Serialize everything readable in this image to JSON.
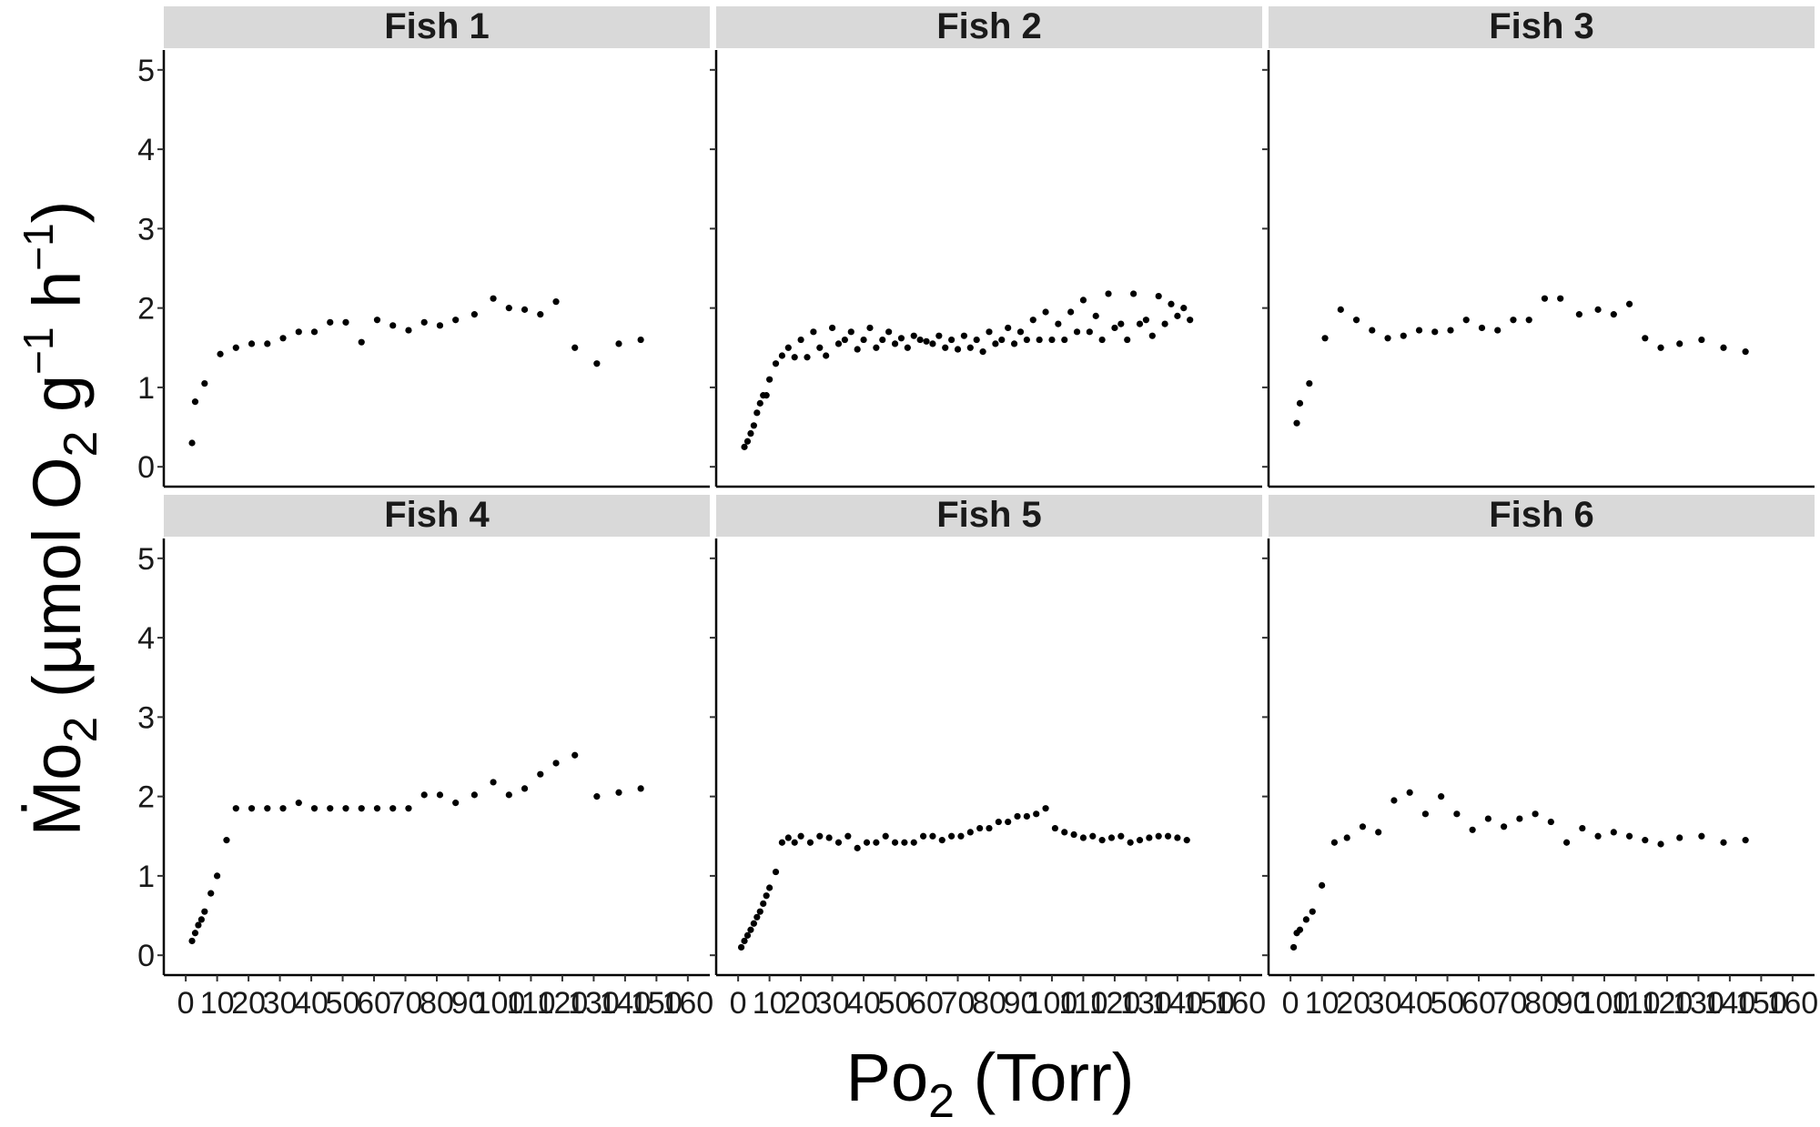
{
  "chart_data": {
    "type": "scatter",
    "facet_layout": "2 rows x 3 columns",
    "shared_axes": true,
    "grid": false,
    "legend": "none",
    "point_color": "#000000",
    "strip_color": "#d9d9d9",
    "xlabel": "Po₂ (Torr)",
    "ylabel": "Ṁo₂ (µmol O₂ g⁻¹ h⁻¹)",
    "xlim": [
      -7,
      167
    ],
    "ylim": [
      -0.25,
      5.25
    ],
    "x_ticks": [
      "0",
      "10",
      "20",
      "30",
      "40",
      "50",
      "60",
      "70",
      "80",
      "90",
      "100",
      "110",
      "120",
      "130",
      "140",
      "150",
      "160"
    ],
    "y_ticks": [
      "0",
      "1",
      "2",
      "3",
      "4",
      "5"
    ],
    "panels": [
      {
        "title": "Fish 1",
        "x": [
          2,
          3,
          6,
          11,
          16,
          21,
          26,
          31,
          36,
          41,
          46,
          51,
          56,
          61,
          66,
          71,
          76,
          81,
          86,
          92,
          98,
          103,
          108,
          113,
          118,
          124,
          131,
          138,
          145
        ],
        "y": [
          0.3,
          0.82,
          1.05,
          1.42,
          1.5,
          1.55,
          1.55,
          1.62,
          1.7,
          1.7,
          1.82,
          1.82,
          1.57,
          1.85,
          1.78,
          1.72,
          1.82,
          1.78,
          1.85,
          1.92,
          2.12,
          2.0,
          1.98,
          1.92,
          2.08,
          1.5,
          1.3,
          1.55,
          1.6
        ]
      },
      {
        "title": "Fish 2",
        "x": [
          2,
          3,
          4,
          5,
          6,
          7,
          8,
          9,
          10,
          12,
          14,
          16,
          18,
          20,
          22,
          24,
          26,
          28,
          30,
          32,
          34,
          36,
          38,
          40,
          42,
          44,
          46,
          48,
          50,
          52,
          54,
          56,
          58,
          60,
          62,
          64,
          66,
          68,
          70,
          72,
          74,
          76,
          78,
          80,
          82,
          84,
          86,
          88,
          90,
          92,
          94,
          96,
          98,
          100,
          102,
          104,
          106,
          108,
          110,
          112,
          114,
          116,
          118,
          120,
          122,
          124,
          126,
          128,
          130,
          132,
          134,
          136,
          138,
          140,
          142,
          144
        ],
        "y": [
          0.25,
          0.32,
          0.42,
          0.52,
          0.68,
          0.8,
          0.9,
          0.9,
          1.1,
          1.3,
          1.4,
          1.5,
          1.38,
          1.6,
          1.38,
          1.7,
          1.5,
          1.4,
          1.75,
          1.55,
          1.6,
          1.7,
          1.48,
          1.6,
          1.75,
          1.5,
          1.6,
          1.7,
          1.55,
          1.62,
          1.5,
          1.65,
          1.6,
          1.58,
          1.55,
          1.65,
          1.5,
          1.6,
          1.48,
          1.65,
          1.5,
          1.6,
          1.45,
          1.7,
          1.55,
          1.6,
          1.75,
          1.55,
          1.7,
          1.6,
          1.85,
          1.6,
          1.95,
          1.6,
          1.8,
          1.6,
          1.95,
          1.7,
          2.1,
          1.7,
          1.9,
          1.6,
          2.18,
          1.75,
          1.8,
          1.6,
          2.18,
          1.8,
          1.85,
          1.65,
          2.15,
          1.8,
          2.05,
          1.9,
          2.0,
          1.85
        ]
      },
      {
        "title": "Fish 3",
        "x": [
          2,
          3,
          6,
          11,
          16,
          21,
          26,
          31,
          36,
          41,
          46,
          51,
          56,
          61,
          66,
          71,
          76,
          81,
          86,
          92,
          98,
          103,
          108,
          113,
          118,
          124,
          131,
          138,
          145
        ],
        "y": [
          0.55,
          0.8,
          1.05,
          1.62,
          1.98,
          1.85,
          1.72,
          1.62,
          1.65,
          1.72,
          1.7,
          1.72,
          1.85,
          1.75,
          1.72,
          1.85,
          1.85,
          2.12,
          2.12,
          1.92,
          1.98,
          1.92,
          2.05,
          1.62,
          1.5,
          1.55,
          1.6,
          1.5,
          1.45
        ]
      },
      {
        "title": "Fish 4",
        "x": [
          2,
          3,
          4,
          5,
          6,
          8,
          10,
          13,
          16,
          21,
          26,
          31,
          36,
          41,
          46,
          51,
          56,
          61,
          66,
          71,
          76,
          81,
          86,
          92,
          98,
          103,
          108,
          113,
          118,
          124,
          131,
          138,
          145
        ],
        "y": [
          0.18,
          0.28,
          0.38,
          0.45,
          0.55,
          0.78,
          1.0,
          1.45,
          1.85,
          1.85,
          1.85,
          1.85,
          1.92,
          1.85,
          1.85,
          1.85,
          1.85,
          1.85,
          1.85,
          1.85,
          2.02,
          2.02,
          1.92,
          2.02,
          2.18,
          2.02,
          2.1,
          2.28,
          2.42,
          2.52,
          2.0,
          2.05,
          2.1
        ]
      },
      {
        "title": "Fish 5",
        "x": [
          1,
          2,
          3,
          4,
          5,
          6,
          7,
          8,
          9,
          10,
          12,
          14,
          16,
          18,
          20,
          23,
          26,
          29,
          32,
          35,
          38,
          41,
          44,
          47,
          50,
          53,
          56,
          59,
          62,
          65,
          68,
          71,
          74,
          77,
          80,
          83,
          86,
          89,
          92,
          95,
          98,
          101,
          104,
          107,
          110,
          113,
          116,
          119,
          122,
          125,
          128,
          131,
          134,
          137,
          140,
          143
        ],
        "y": [
          0.1,
          0.18,
          0.25,
          0.32,
          0.4,
          0.48,
          0.55,
          0.65,
          0.75,
          0.85,
          1.05,
          1.42,
          1.48,
          1.42,
          1.5,
          1.42,
          1.5,
          1.48,
          1.42,
          1.5,
          1.35,
          1.42,
          1.42,
          1.5,
          1.42,
          1.42,
          1.42,
          1.5,
          1.5,
          1.45,
          1.5,
          1.5,
          1.55,
          1.6,
          1.6,
          1.68,
          1.68,
          1.75,
          1.75,
          1.78,
          1.85,
          1.6,
          1.55,
          1.52,
          1.48,
          1.5,
          1.45,
          1.48,
          1.5,
          1.42,
          1.45,
          1.48,
          1.5,
          1.5,
          1.48,
          1.45
        ]
      },
      {
        "title": "Fish 6",
        "x": [
          1,
          2,
          3,
          5,
          7,
          10,
          14,
          18,
          23,
          28,
          33,
          38,
          43,
          48,
          53,
          58,
          63,
          68,
          73,
          78,
          83,
          88,
          93,
          98,
          103,
          108,
          113,
          118,
          124,
          131,
          138,
          145
        ],
        "y": [
          0.1,
          0.28,
          0.32,
          0.45,
          0.55,
          0.88,
          1.42,
          1.48,
          1.62,
          1.55,
          1.95,
          2.05,
          1.78,
          2.0,
          1.78,
          1.58,
          1.72,
          1.62,
          1.72,
          1.78,
          1.68,
          1.42,
          1.6,
          1.5,
          1.55,
          1.5,
          1.45,
          1.4,
          1.48,
          1.5,
          1.42,
          1.45
        ]
      }
    ]
  }
}
